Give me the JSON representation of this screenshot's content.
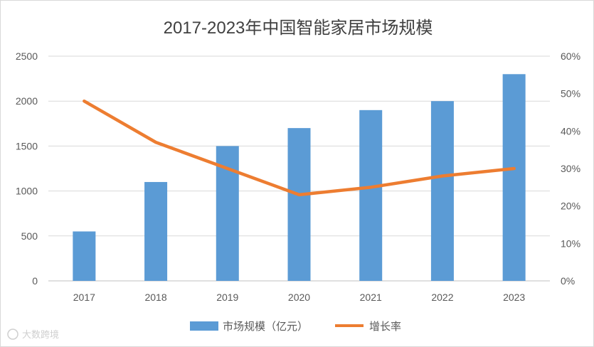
{
  "chart_data": {
    "type": "bar",
    "title": "2017-2023年中国智能家居市场规模",
    "categories": [
      "2017",
      "2018",
      "2019",
      "2020",
      "2021",
      "2022",
      "2023"
    ],
    "series": [
      {
        "name": "市场规模（亿元）",
        "type": "bar",
        "axis": "left",
        "color": "#5b9bd5",
        "values": [
          550,
          1100,
          1500,
          1700,
          1900,
          2000,
          2300
        ]
      },
      {
        "name": "增长率",
        "type": "line",
        "axis": "right",
        "color": "#ed7d31",
        "values": [
          48,
          37,
          30,
          23,
          25,
          28,
          30
        ]
      }
    ],
    "y_left": {
      "min": 0,
      "max": 2500,
      "ticks": [
        "0",
        "500",
        "1000",
        "1500",
        "2000",
        "2500"
      ]
    },
    "y_right": {
      "min": 0,
      "max": 60,
      "ticks": [
        "0%",
        "10%",
        "20%",
        "30%",
        "40%",
        "50%",
        "60%"
      ]
    },
    "grid": true,
    "legend": "bottom"
  },
  "watermark": "大数跨境"
}
